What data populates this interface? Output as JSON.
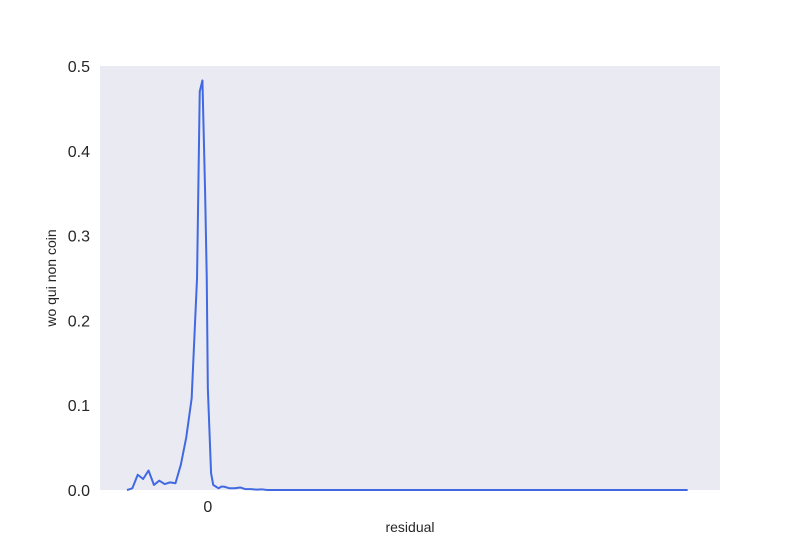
{
  "chart_data": {
    "type": "line",
    "title": "",
    "xlabel": "residual",
    "ylabel": "wo qui non coin",
    "xlim": [
      -0.2,
      0.95
    ],
    "ylim": [
      0,
      0.5
    ],
    "x_ticks": [
      0
    ],
    "x_tick_labels": [
      "0"
    ],
    "y_ticks": [
      0.0,
      0.1,
      0.2,
      0.3,
      0.4,
      0.5
    ],
    "y_tick_labels": [
      "0.0",
      "0.1",
      "0.2",
      "0.3",
      "0.4",
      "0.5"
    ],
    "grid": false,
    "background": "#eaeaf2",
    "series": [
      {
        "color": "#4169e1",
        "x": [
          -0.15,
          -0.14,
          -0.13,
          -0.12,
          -0.11,
          -0.1,
          -0.09,
          -0.08,
          -0.07,
          -0.06,
          -0.05,
          -0.04,
          -0.03,
          -0.02,
          -0.015,
          -0.01,
          -0.005,
          -0.002,
          0.0,
          0.003,
          0.006,
          0.01,
          0.015,
          0.02,
          0.025,
          0.03,
          0.035,
          0.04,
          0.05,
          0.06,
          0.07,
          0.08,
          0.09,
          0.1,
          0.11,
          0.12,
          0.13,
          0.14,
          0.15,
          0.16,
          0.17,
          0.18,
          0.2,
          0.25,
          0.3,
          0.4,
          0.5,
          0.6,
          0.7,
          0.8,
          0.89
        ],
        "y": [
          0.0,
          0.002,
          0.018,
          0.013,
          0.023,
          0.006,
          0.011,
          0.007,
          0.009,
          0.008,
          0.03,
          0.062,
          0.108,
          0.25,
          0.47,
          0.483,
          0.35,
          0.25,
          0.12,
          0.07,
          0.02,
          0.006,
          0.004,
          0.002,
          0.004,
          0.004,
          0.003,
          0.002,
          0.002,
          0.003,
          0.001,
          0.001,
          0.0005,
          0.0008,
          0.0,
          0.0,
          0.0,
          0.0,
          0.0,
          0.0,
          0.0,
          0.0,
          0.0,
          0.0,
          0.0,
          0.0,
          0.0,
          0.0,
          0.0,
          0.0,
          0.0
        ]
      }
    ]
  }
}
